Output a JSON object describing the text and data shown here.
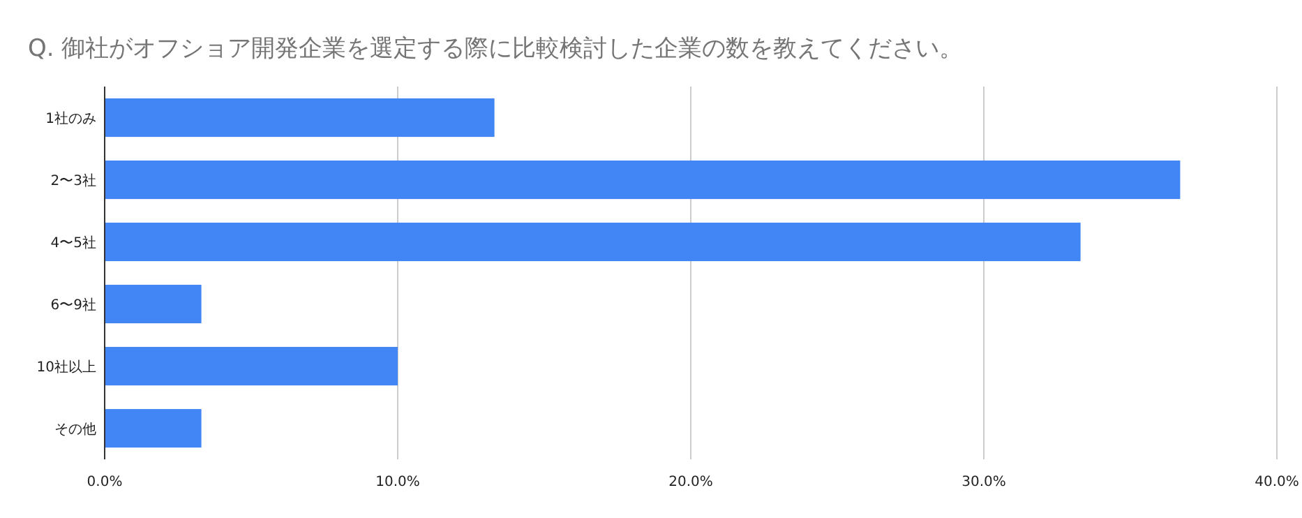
{
  "chart_data": {
    "type": "bar",
    "orientation": "horizontal",
    "title": "Q. 御社がオフショア開発企業を選定する際に比較検討した企業の数を教えてください。",
    "categories": [
      "1社のみ",
      "2〜3社",
      "4〜5社",
      "6〜9社",
      "10社以上",
      "その他"
    ],
    "values": [
      13.3,
      36.7,
      33.3,
      3.3,
      10.0,
      3.3
    ],
    "color": "#4285f4",
    "xlim": [
      0,
      40
    ],
    "xticks": [
      {
        "value": 0,
        "label": "0.0%"
      },
      {
        "value": 10,
        "label": "10.0%"
      },
      {
        "value": 20,
        "label": "20.0%"
      },
      {
        "value": 30,
        "label": "30.0%"
      },
      {
        "value": 40,
        "label": "40.0%"
      }
    ],
    "grid": "x"
  }
}
